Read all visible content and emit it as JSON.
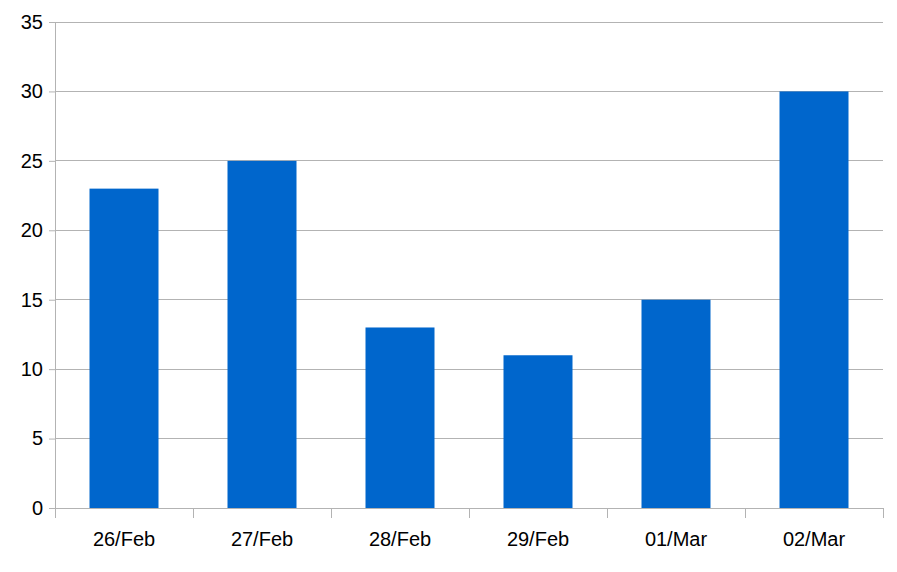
{
  "chart_data": {
    "type": "bar",
    "categories": [
      "26/Feb",
      "27/Feb",
      "28/Feb",
      "29/Feb",
      "01/Mar",
      "02/Mar"
    ],
    "values": [
      23,
      25,
      13,
      11,
      15,
      30
    ],
    "color": "#0066cc",
    "ylim": [
      0,
      35
    ],
    "yticks": [
      0,
      5,
      10,
      15,
      20,
      25,
      30,
      35
    ],
    "grid": true
  }
}
